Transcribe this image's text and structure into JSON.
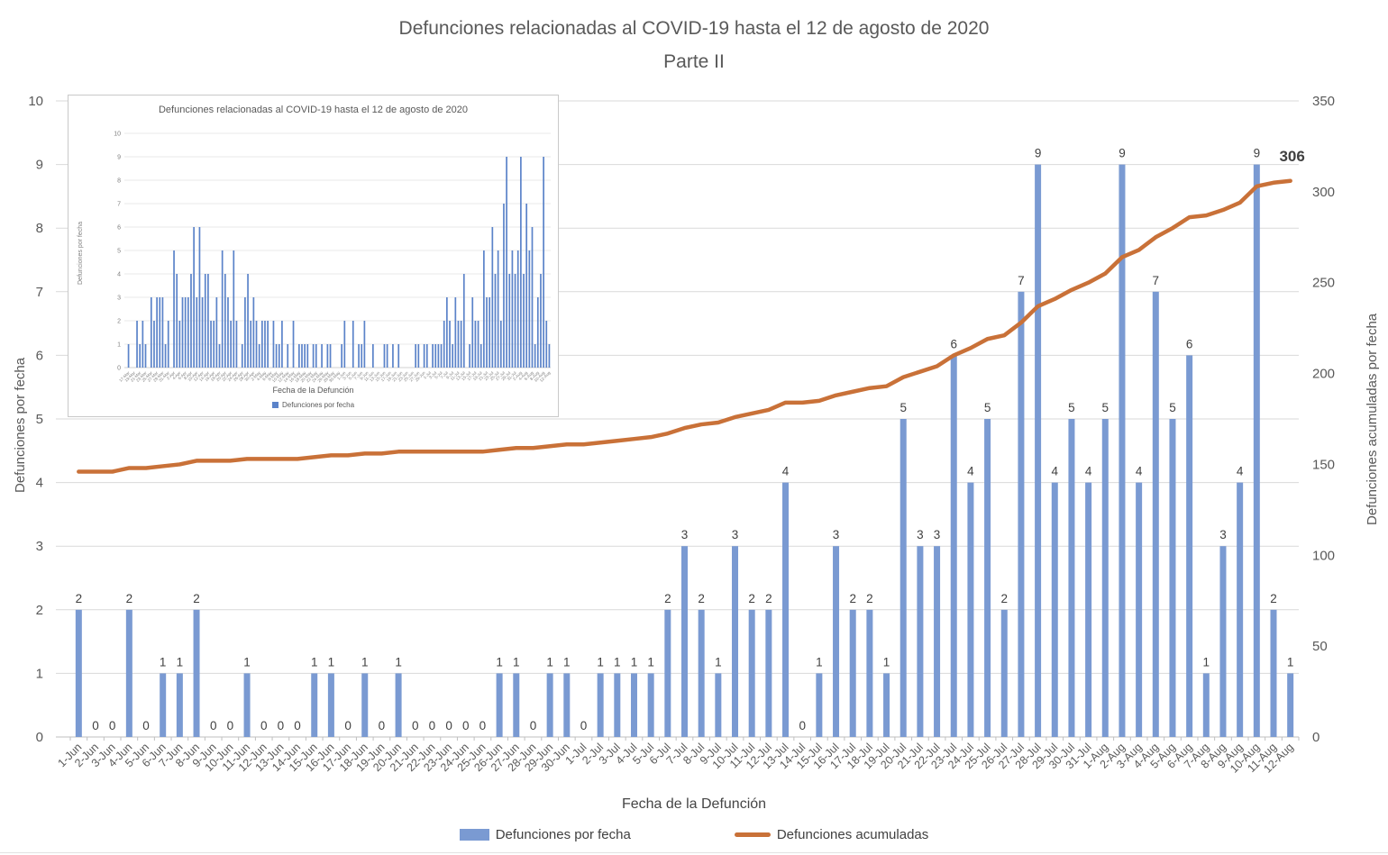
{
  "page": {
    "title": "Defunciones relacionadas al COVID-19 hasta el 12 de agosto de 2020",
    "subtitle": "Parte II"
  },
  "axes": {
    "left_title": "Defunciones por fecha",
    "right_title": "Defunciones acumuladas por fecha",
    "x_title": "Fecha de la Defunción"
  },
  "legend": {
    "bars_label": "Defunciones por fecha",
    "line_label": "Defunciones acumuladas"
  },
  "inset": {
    "title": "Defunciones relacionadas al COVID-19 hasta el 12 de agosto de 2020",
    "y_title": "Defunciones por fecha",
    "x_title": "Fecha de la Defunción",
    "legend_label": "Defunciones por fecha"
  },
  "colors": {
    "bar": "#7a9ad2",
    "bar_inset": "#5b83c9",
    "line": "#c97138",
    "grid": "#d9d9d9",
    "grid_inset": "#e3e3e3",
    "axis": "#bfbfbf",
    "text_dark": "#404040",
    "text_gray": "#595959",
    "text_light": "#808080"
  },
  "chart_data": [
    {
      "type": "bar",
      "title": "Defunciones relacionadas al COVID-19 hasta el 12 de agosto de 2020 — Parte II",
      "xlabel": "Fecha de la Defunción",
      "ylabel_left": "Defunciones por fecha",
      "ylabel_right": "Defunciones acumuladas por fecha",
      "ylim_left": [
        0,
        10
      ],
      "ylim_right": [
        0,
        350
      ],
      "yticks_left": [
        0,
        1,
        2,
        3,
        4,
        5,
        6,
        7,
        8,
        9,
        10
      ],
      "yticks_right": [
        0,
        50,
        100,
        150,
        200,
        250,
        300,
        350
      ],
      "grid": true,
      "legend_position": "bottom",
      "categories": [
        "1-Jun",
        "2-Jun",
        "3-Jun",
        "4-Jun",
        "5-Jun",
        "6-Jun",
        "7-Jun",
        "8-Jun",
        "9-Jun",
        "10-Jun",
        "11-Jun",
        "12-Jun",
        "13-Jun",
        "14-Jun",
        "15-Jun",
        "16-Jun",
        "17-Jun",
        "18-Jun",
        "19-Jun",
        "20-Jun",
        "21-Jun",
        "22-Jun",
        "23-Jun",
        "24-Jun",
        "25-Jun",
        "26-Jun",
        "27-Jun",
        "28-Jun",
        "29-Jun",
        "30-Jun",
        "1-Jul",
        "2-Jul",
        "3-Jul",
        "4-Jul",
        "5-Jul",
        "6-Jul",
        "7-Jul",
        "8-Jul",
        "9-Jul",
        "10-Jul",
        "11-Jul",
        "12-Jul",
        "13-Jul",
        "14-Jul",
        "15-Jul",
        "16-Jul",
        "17-Jul",
        "18-Jul",
        "19-Jul",
        "20-Jul",
        "21-Jul",
        "22-Jul",
        "23-Jul",
        "24-Jul",
        "25-Jul",
        "26-Jul",
        "27-Jul",
        "28-Jul",
        "29-Jul",
        "30-Jul",
        "31-Jul",
        "1-Aug",
        "2-Aug",
        "3-Aug",
        "4-Aug",
        "5-Aug",
        "6-Aug",
        "7-Aug",
        "8-Aug",
        "9-Aug",
        "10-Aug",
        "11-Aug",
        "12-Aug"
      ],
      "series": [
        {
          "name": "Defunciones por fecha",
          "type": "bar",
          "values": [
            2,
            0,
            0,
            2,
            0,
            1,
            1,
            2,
            0,
            0,
            1,
            0,
            0,
            0,
            1,
            1,
            0,
            1,
            0,
            1,
            0,
            0,
            0,
            0,
            0,
            1,
            1,
            0,
            1,
            1,
            0,
            1,
            1,
            1,
            1,
            2,
            3,
            2,
            1,
            3,
            2,
            2,
            4,
            0,
            1,
            3,
            2,
            2,
            1,
            5,
            3,
            3,
            6,
            4,
            5,
            2,
            7,
            9,
            4,
            5,
            4,
            5,
            9,
            4,
            7,
            5,
            6,
            1,
            3,
            4,
            9,
            2,
            1
          ]
        },
        {
          "name": "Defunciones acumuladas",
          "type": "line",
          "y_axis": "right",
          "end_label": "306",
          "values": [
            146,
            146,
            146,
            148,
            148,
            149,
            150,
            152,
            152,
            152,
            153,
            153,
            153,
            153,
            154,
            155,
            155,
            156,
            156,
            157,
            157,
            157,
            157,
            157,
            157,
            158,
            159,
            159,
            160,
            161,
            161,
            162,
            163,
            164,
            165,
            167,
            170,
            172,
            173,
            176,
            178,
            180,
            184,
            184,
            185,
            188,
            190,
            192,
            193,
            198,
            201,
            204,
            210,
            214,
            219,
            221,
            228,
            237,
            241,
            246,
            250,
            255,
            264,
            268,
            275,
            280,
            286,
            287,
            290,
            294,
            303,
            305,
            306
          ]
        }
      ]
    },
    {
      "type": "bar",
      "title": "Defunciones relacionadas al COVID-19 hasta el 12 de agosto de 2020",
      "xlabel": "Fecha de la Defunción",
      "ylabel": "Defunciones por fecha",
      "ylim": [
        0,
        10
      ],
      "yticks": [
        0,
        1,
        2,
        3,
        4,
        5,
        6,
        7,
        8,
        9,
        10
      ],
      "legend": [
        "Defunciones por fecha"
      ],
      "categories": [
        "17-Mar",
        "18-Mar",
        "19-Mar",
        "20-Mar",
        "21-Mar",
        "22-Mar",
        "23-Mar",
        "24-Mar",
        "25-Mar",
        "26-Mar",
        "27-Mar",
        "28-Mar",
        "29-Mar",
        "30-Mar",
        "31-Mar",
        "1-Apr",
        "2-Apr",
        "3-Apr",
        "4-Apr",
        "5-Apr",
        "6-Apr",
        "7-Apr",
        "8-Apr",
        "9-Apr",
        "10-Apr",
        "11-Apr",
        "12-Apr",
        "13-Apr",
        "14-Apr",
        "15-Apr",
        "16-Apr",
        "17-Apr",
        "18-Apr",
        "19-Apr",
        "20-Apr",
        "21-Apr",
        "22-Apr",
        "23-Apr",
        "24-Apr",
        "25-Apr",
        "26-Apr",
        "27-Apr",
        "28-Apr",
        "29-Apr",
        "30-Apr",
        "1-May",
        "2-May",
        "3-May",
        "4-May",
        "5-May",
        "6-May",
        "7-May",
        "8-May",
        "9-May",
        "10-May",
        "11-May",
        "12-May",
        "13-May",
        "14-May",
        "15-May",
        "16-May",
        "17-May",
        "18-May",
        "19-May",
        "20-May",
        "21-May",
        "22-May",
        "23-May",
        "24-May",
        "25-May",
        "26-May",
        "27-May",
        "28-May",
        "29-May",
        "30-May",
        "31-May",
        "1-Jun",
        "2-Jun",
        "3-Jun",
        "4-Jun",
        "5-Jun",
        "6-Jun",
        "7-Jun",
        "8-Jun",
        "9-Jun",
        "10-Jun",
        "11-Jun",
        "12-Jun",
        "13-Jun",
        "14-Jun",
        "15-Jun",
        "16-Jun",
        "17-Jun",
        "18-Jun",
        "19-Jun",
        "20-Jun",
        "21-Jun",
        "22-Jun",
        "23-Jun",
        "24-Jun",
        "25-Jun",
        "26-Jun",
        "27-Jun",
        "28-Jun",
        "29-Jun",
        "30-Jun",
        "1-Jul",
        "2-Jul",
        "3-Jul",
        "4-Jul",
        "5-Jul",
        "6-Jul",
        "7-Jul",
        "8-Jul",
        "9-Jul",
        "10-Jul",
        "11-Jul",
        "12-Jul",
        "13-Jul",
        "14-Jul",
        "15-Jul",
        "16-Jul",
        "17-Jul",
        "18-Jul",
        "19-Jul",
        "20-Jul",
        "21-Jul",
        "22-Jul",
        "23-Jul",
        "24-Jul",
        "25-Jul",
        "26-Jul",
        "27-Jul",
        "28-Jul",
        "29-Jul",
        "30-Jul",
        "31-Jul",
        "1-Aug",
        "2-Aug",
        "3-Aug",
        "4-Aug",
        "5-Aug",
        "6-Aug",
        "7-Aug",
        "8-Aug",
        "9-Aug",
        "10-Aug",
        "11-Aug",
        "12-Aug"
      ],
      "values": [
        1,
        0,
        0,
        2,
        1,
        2,
        1,
        0,
        3,
        2,
        3,
        3,
        3,
        1,
        2,
        0,
        5,
        4,
        2,
        3,
        3,
        3,
        4,
        6,
        3,
        6,
        3,
        4,
        4,
        2,
        2,
        3,
        1,
        5,
        4,
        3,
        2,
        5,
        2,
        0,
        1,
        3,
        4,
        2,
        3,
        2,
        1,
        2,
        2,
        2,
        0,
        2,
        1,
        1,
        2,
        0,
        1,
        0,
        2,
        0,
        1,
        1,
        1,
        1,
        0,
        1,
        1,
        0,
        1,
        0,
        1,
        1,
        0,
        0,
        0,
        1,
        2,
        0,
        0,
        2,
        0,
        1,
        1,
        2,
        0,
        0,
        1,
        0,
        0,
        0,
        1,
        1,
        0,
        1,
        0,
        1,
        0,
        0,
        0,
        0,
        0,
        1,
        1,
        0,
        1,
        1,
        0,
        1,
        1,
        1,
        1,
        2,
        3,
        2,
        1,
        3,
        2,
        2,
        4,
        0,
        1,
        3,
        2,
        2,
        1,
        5,
        3,
        3,
        6,
        4,
        5,
        2,
        7,
        9,
        4,
        5,
        4,
        5,
        9,
        4,
        7,
        5,
        6,
        1,
        3,
        4,
        9,
        2,
        1
      ]
    }
  ]
}
